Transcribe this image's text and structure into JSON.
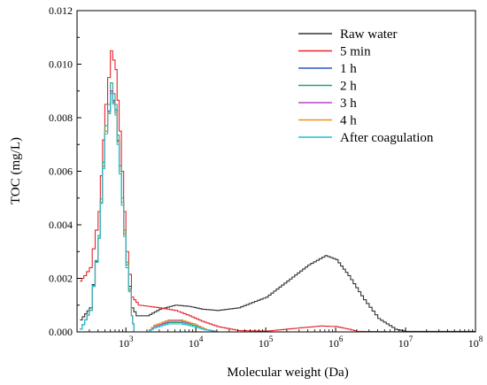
{
  "chart_data": {
    "type": "line",
    "xlabel": "Molecular weight (Da)",
    "ylabel": "TOC (mg/L)",
    "x_scale": "log",
    "xlim": [
      200,
      100000000
    ],
    "ylim": [
      0,
      0.012
    ],
    "y_ticks": [
      "0.000",
      "0.002",
      "0.004",
      "0.006",
      "0.008",
      "0.010",
      "0.012"
    ],
    "x_ticks": [
      {
        "base": "10",
        "exp": "3",
        "value": 1000
      },
      {
        "base": "10",
        "exp": "4",
        "value": 10000
      },
      {
        "base": "10",
        "exp": "5",
        "value": 100000
      },
      {
        "base": "10",
        "exp": "6",
        "value": 1000000
      },
      {
        "base": "10",
        "exp": "7",
        "value": 10000000
      },
      {
        "base": "10",
        "exp": "8",
        "value": 100000000
      }
    ],
    "legend_position": "top-right",
    "grid": false,
    "series": [
      {
        "name": "Raw water",
        "color": "#333333",
        "points": [
          [
            220,
            0.00045
          ],
          [
            300,
            0.0009
          ],
          [
            400,
            0.0035
          ],
          [
            500,
            0.0075
          ],
          [
            600,
            0.0089
          ],
          [
            700,
            0.0082
          ],
          [
            800,
            0.006
          ],
          [
            1000,
            0.0025
          ],
          [
            1200,
            0.0009
          ],
          [
            1400,
            0.0006
          ],
          [
            2000,
            0.0006
          ],
          [
            3000,
            0.00085
          ],
          [
            5000,
            0.001
          ],
          [
            8000,
            0.00095
          ],
          [
            12000,
            0.00085
          ],
          [
            20000,
            0.0008
          ],
          [
            40000,
            0.0009
          ],
          [
            100000,
            0.0013
          ],
          [
            200000,
            0.0019
          ],
          [
            400000,
            0.0025
          ],
          [
            700000,
            0.00285
          ],
          [
            1000000,
            0.0027
          ],
          [
            1500000,
            0.0021
          ],
          [
            2500000,
            0.0012
          ],
          [
            4000000,
            0.0005
          ],
          [
            7000000,
            0.0001
          ],
          [
            10000000,
            2e-05
          ],
          [
            100000000,
            2e-05
          ]
        ]
      },
      {
        "name": "5 min",
        "color": "#e8232a",
        "points": [
          [
            220,
            0.0019
          ],
          [
            250,
            0.0021
          ],
          [
            300,
            0.0024
          ],
          [
            400,
            0.0045
          ],
          [
            500,
            0.0085
          ],
          [
            600,
            0.0105
          ],
          [
            700,
            0.0098
          ],
          [
            800,
            0.0075
          ],
          [
            1000,
            0.003
          ],
          [
            1200,
            0.0013
          ],
          [
            1500,
            0.001
          ],
          [
            3000,
            0.0009
          ],
          [
            5000,
            0.0008
          ],
          [
            8000,
            0.0006
          ],
          [
            12000,
            0.0004
          ],
          [
            20000,
            0.0002
          ],
          [
            40000,
            5e-05
          ],
          [
            100000,
            3e-05
          ],
          [
            300000,
            0.00015
          ],
          [
            600000,
            0.00022
          ],
          [
            1000000,
            0.0002
          ],
          [
            1500000,
            0.0001
          ],
          [
            2000000,
            2e-05
          ],
          [
            10000000,
            0.0
          ],
          [
            100000000,
            0.0
          ]
        ]
      },
      {
        "name": "1 h",
        "color": "#2b57c9",
        "points": [
          [
            220,
            0.0001
          ],
          [
            300,
            0.0008
          ],
          [
            400,
            0.0035
          ],
          [
            500,
            0.0075
          ],
          [
            600,
            0.009
          ],
          [
            700,
            0.0083
          ],
          [
            800,
            0.006
          ],
          [
            1000,
            0.0025
          ],
          [
            1200,
            0.0006
          ],
          [
            1300,
            0.0
          ],
          [
            2000,
            0.0
          ],
          [
            2500,
            0.0002
          ],
          [
            4000,
            0.0004
          ],
          [
            6000,
            0.0004
          ],
          [
            9000,
            0.0003
          ],
          [
            13000,
            0.0001
          ],
          [
            20000,
            0.0
          ],
          [
            100000000,
            0.0
          ]
        ]
      },
      {
        "name": "2 h",
        "color": "#1fa67a",
        "points": [
          [
            220,
            0.0001
          ],
          [
            300,
            0.0008
          ],
          [
            400,
            0.0036
          ],
          [
            500,
            0.0077
          ],
          [
            600,
            0.0093
          ],
          [
            700,
            0.0085
          ],
          [
            800,
            0.0062
          ],
          [
            1000,
            0.0026
          ],
          [
            1200,
            0.0006
          ],
          [
            1300,
            0.0
          ],
          [
            2000,
            0.0
          ],
          [
            2500,
            0.0002
          ],
          [
            4000,
            0.00035
          ],
          [
            6000,
            0.00035
          ],
          [
            9000,
            0.00025
          ],
          [
            13000,
            0.0001
          ],
          [
            20000,
            0.0
          ],
          [
            100000000,
            0.0
          ]
        ]
      },
      {
        "name": "3 h",
        "color": "#c040c8",
        "points": [
          [
            220,
            0.0001
          ],
          [
            300,
            0.0008
          ],
          [
            400,
            0.0035
          ],
          [
            500,
            0.0075
          ],
          [
            600,
            0.009
          ],
          [
            700,
            0.0082
          ],
          [
            800,
            0.006
          ],
          [
            1000,
            0.0025
          ],
          [
            1200,
            0.0006
          ],
          [
            1300,
            0.0
          ],
          [
            2000,
            0.0
          ],
          [
            2500,
            0.0002
          ],
          [
            4000,
            0.0004
          ],
          [
            6000,
            0.0004
          ],
          [
            9000,
            0.0003
          ],
          [
            13000,
            0.0001
          ],
          [
            20000,
            0.0
          ],
          [
            100000000,
            0.0
          ]
        ]
      },
      {
        "name": "4 h",
        "color": "#e8921a",
        "points": [
          [
            220,
            0.0001
          ],
          [
            300,
            0.0008
          ],
          [
            400,
            0.0035
          ],
          [
            500,
            0.0075
          ],
          [
            600,
            0.0089
          ],
          [
            700,
            0.0082
          ],
          [
            800,
            0.006
          ],
          [
            1000,
            0.0025
          ],
          [
            1200,
            0.0006
          ],
          [
            1300,
            0.0
          ],
          [
            2000,
            0.0
          ],
          [
            2500,
            0.00025
          ],
          [
            4000,
            0.00045
          ],
          [
            6000,
            0.00045
          ],
          [
            9000,
            0.0003
          ],
          [
            13000,
            0.0001
          ],
          [
            20000,
            0.0
          ],
          [
            100000000,
            0.0
          ]
        ]
      },
      {
        "name": "After coagulation",
        "color": "#1ec1d6",
        "points": [
          [
            220,
            0.0001
          ],
          [
            300,
            0.0008
          ],
          [
            400,
            0.0035
          ],
          [
            500,
            0.0074
          ],
          [
            600,
            0.0089
          ],
          [
            700,
            0.0081
          ],
          [
            800,
            0.0059
          ],
          [
            1000,
            0.0024
          ],
          [
            1200,
            0.0006
          ],
          [
            1300,
            0.0
          ],
          [
            2000,
            0.0
          ],
          [
            2500,
            0.00015
          ],
          [
            4000,
            0.0003
          ],
          [
            6000,
            0.0003
          ],
          [
            9000,
            0.0002
          ],
          [
            13000,
            8e-05
          ],
          [
            20000,
            0.0
          ],
          [
            100000000,
            0.0
          ]
        ]
      }
    ]
  }
}
